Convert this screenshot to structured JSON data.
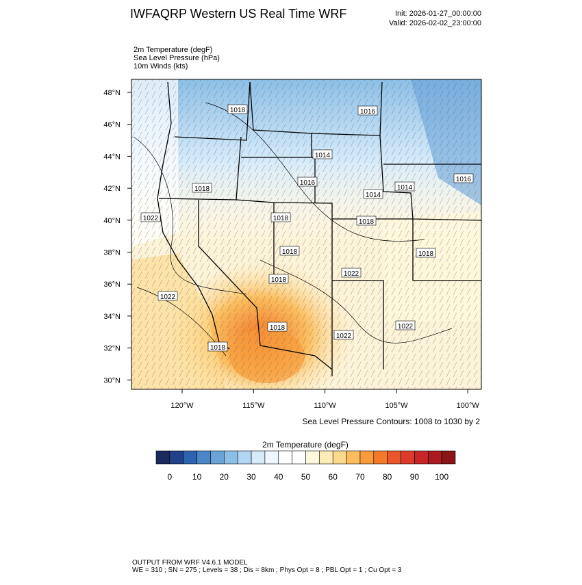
{
  "header": {
    "title": "IWFAQRP Western US Real Time WRF",
    "init": "Init: 2026-01-27_00:00:00",
    "valid": "Valid: 2026-02-02_23:00:00"
  },
  "fields": [
    "2m Temperature   (degF)",
    "Sea Level Pressure   (hPa)",
    "10m Winds   (kts)"
  ],
  "map": {
    "lat_labels": [
      "48°N",
      "46°N",
      "44°N",
      "42°N",
      "40°N",
      "38°N",
      "36°N",
      "34°N",
      "32°N",
      "30°N"
    ],
    "lon_labels": [
      "120°W",
      "115°W",
      "110°W",
      "105°W",
      "100°W"
    ],
    "contour_labels": [
      "1018",
      "1016",
      "1014",
      "1018",
      "1016",
      "1014",
      "1014",
      "1016",
      "1022",
      "1018",
      "1018",
      "1018",
      "1018",
      "1022",
      "1018",
      "1022",
      "1018",
      "1022",
      "1022",
      "1018"
    ],
    "contour_note": "Sea Level Pressure Contours: 1008 to 1030 by 2"
  },
  "colorbar": {
    "title": "2m Temperature  (degF)",
    "colors": [
      "#1a2a5e",
      "#21428a",
      "#2e63b0",
      "#4a86c8",
      "#6aa3d8",
      "#8dbfe6",
      "#b2d7f2",
      "#d6ebfa",
      "#eef7fd",
      "#ffffff",
      "#ffffff",
      "#fff7dc",
      "#feebb5",
      "#fdd98b",
      "#fbbd5d",
      "#f79b3c",
      "#f27a2a",
      "#e9562a",
      "#dd3a2c",
      "#c92428",
      "#aa1a1f",
      "#8a1516"
    ],
    "ticks": [
      0,
      10,
      20,
      30,
      40,
      50,
      60,
      70,
      80,
      90,
      100
    ]
  },
  "footer": [
    "OUTPUT FROM WRF V4.6.1 MODEL",
    "WE = 310 ; SN = 275 ; Levels = 38 ; Dis = 8km ; Phys Opt = 8 ; PBL Opt = 1 ; Cu Opt = 3"
  ]
}
